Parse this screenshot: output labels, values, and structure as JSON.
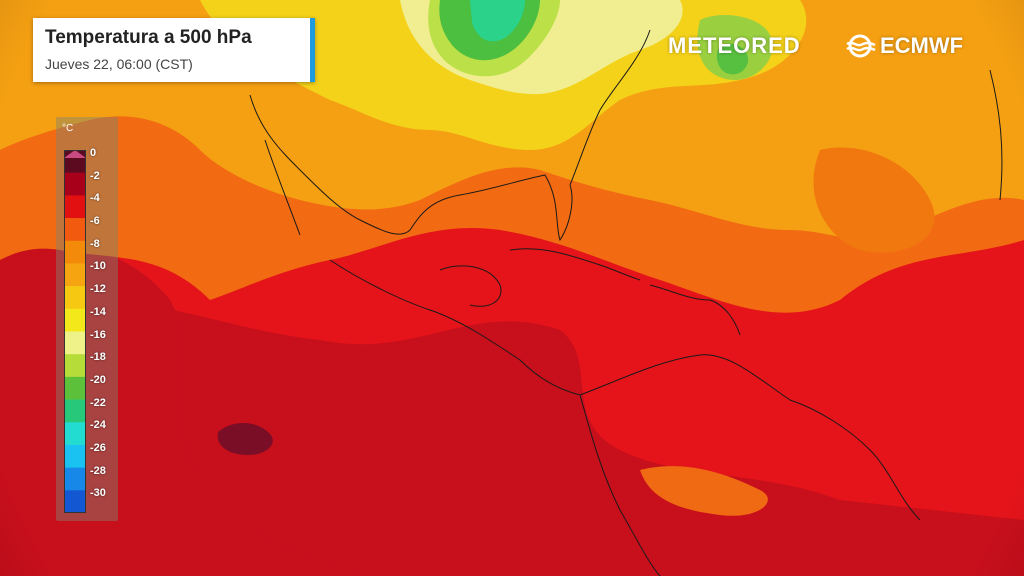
{
  "title": "Temperatura a 500 hPa",
  "subtitle": "Jueves 22, 06:00 (CST)",
  "branding": {
    "left": "METEORED",
    "right": "ECMWF"
  },
  "legend": {
    "unit": "°C",
    "labels": [
      "0",
      "-2",
      "-4",
      "-6",
      "-8",
      "-10",
      "-12",
      "-14",
      "-16",
      "-18",
      "-20",
      "-22",
      "-24",
      "-26",
      "-28",
      "-30"
    ],
    "colors": [
      "#5c0a20",
      "#a8001a",
      "#e21010",
      "#f25a10",
      "#f48a0a",
      "#f6a510",
      "#f6c812",
      "#f2e81a",
      "#eef288",
      "#b6dc3a",
      "#5cc03a",
      "#28c87a",
      "#22dcd2",
      "#1ac2f2",
      "#1888e8",
      "#1457d2"
    ]
  }
}
